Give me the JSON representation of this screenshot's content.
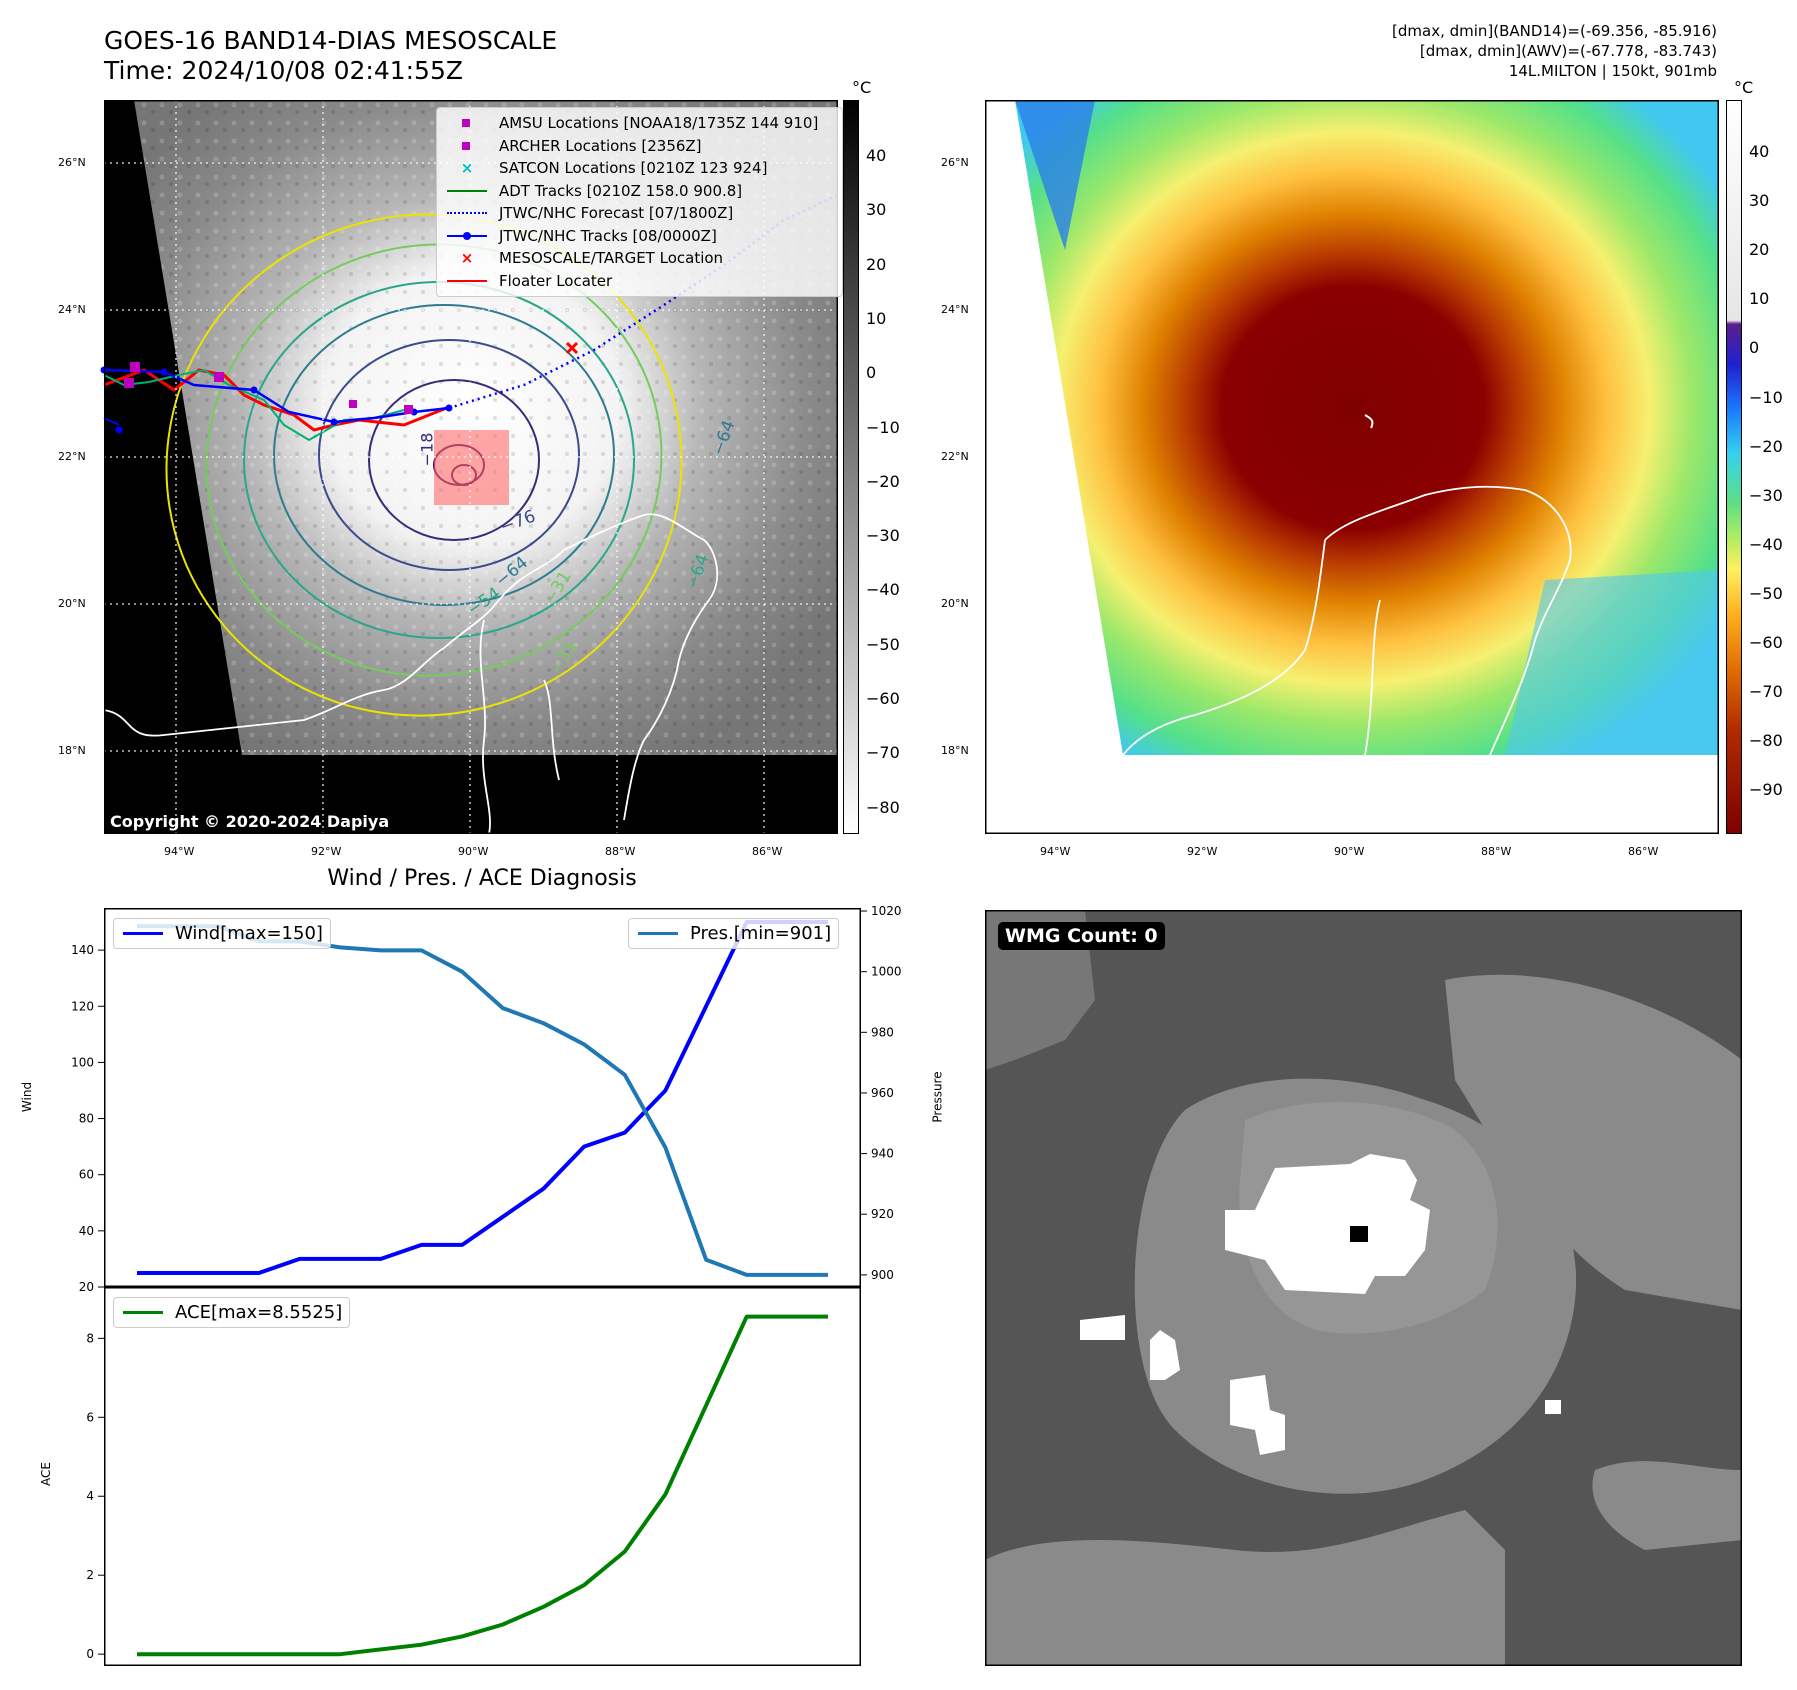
{
  "header": {
    "title_line1": "GOES-16 BAND14-DIAS MESOSCALE",
    "title_line2": "Time: 2024/10/08 02:41:55Z",
    "info_line1": "[dmax, dmin](BAND14)=(-69.356, -85.916)",
    "info_line2": "[dmax, dmin](AWV)=(-67.778, -83.743)",
    "info_line3": "14L.MILTON | 150kt, 901mb"
  },
  "map": {
    "lat_ticks": [
      "26°N",
      "24°N",
      "22°N",
      "20°N",
      "18°N"
    ],
    "lon_ticks": [
      "94°W",
      "92°W",
      "90°W",
      "88°W",
      "86°W"
    ],
    "copyright": "Copyright © 2020-2024 Dapiya",
    "contour_labels": [
      "−76",
      "−64",
      "−64",
      "−54",
      "−31",
      "−31",
      "−64",
      "−18"
    ],
    "legend": [
      {
        "label": "AMSU Locations [NOAA18/1735Z 144 910]",
        "color": "#bf00bf",
        "kind": "square"
      },
      {
        "label": "ARCHER Locations [2356Z]",
        "color": "#bf00bf",
        "kind": "square"
      },
      {
        "label": "SATCON Locations [0210Z 123 924]",
        "color": "#00bfbf",
        "kind": "x"
      },
      {
        "label": "ADT Tracks [0210Z 158.0 900.8]",
        "color": "#008000",
        "kind": "line"
      },
      {
        "label": "JTWC/NHC Forecast [07/1800Z]",
        "color": "#0000ff",
        "kind": "dotted"
      },
      {
        "label": "JTWC/NHC Tracks [08/0000Z]",
        "color": "#0000ff",
        "kind": "linedot"
      },
      {
        "label": "MESOSCALE/TARGET Location",
        "color": "#ff0000",
        "kind": "x"
      },
      {
        "label": "Floater Locater",
        "color": "#ff0000",
        "kind": "line"
      }
    ]
  },
  "colorbar_gray": {
    "unit": "°C",
    "ticks": [
      "40",
      "30",
      "20",
      "10",
      "0",
      "−10",
      "−20",
      "−30",
      "−40",
      "−50",
      "−60",
      "−70",
      "−80"
    ]
  },
  "colorbar_color": {
    "unit": "°C",
    "ticks": [
      "40",
      "30",
      "20",
      "10",
      "0",
      "−10",
      "−20",
      "−30",
      "−40",
      "−50",
      "−60",
      "−70",
      "−80",
      "−90"
    ]
  },
  "wmg": {
    "label": "WMG Count: 0"
  },
  "chart_data": [
    {
      "type": "line",
      "title": "Wind / Pres. / ACE Diagnosis",
      "ylabel": "Wind",
      "ylabel_right": "Pressure",
      "ylim": [
        20,
        155
      ],
      "ylim_right": [
        896,
        1021
      ],
      "yticks": [
        20,
        40,
        60,
        80,
        100,
        120,
        140
      ],
      "yticks_right": [
        900,
        920,
        940,
        960,
        980,
        1000,
        1020
      ],
      "x": [
        0,
        1,
        2,
        3,
        4,
        5,
        6,
        7,
        8,
        9,
        10,
        11,
        12,
        13,
        14,
        15,
        16,
        17
      ],
      "series": [
        {
          "name": "Wind[max=150]",
          "color": "#0000ff",
          "axis": "left",
          "values": [
            25,
            25,
            25,
            25,
            30,
            30,
            30,
            35,
            35,
            45,
            55,
            70,
            75,
            90,
            120,
            150,
            150,
            150
          ]
        },
        {
          "name": "Pres.[min=901]",
          "color": "#1f77b4",
          "axis": "right",
          "values": [
            1015,
            1015,
            1015,
            1010,
            1010,
            1008,
            1007,
            1007,
            1000,
            988,
            983,
            976,
            966,
            942,
            905,
            900,
            900,
            900
          ]
        }
      ]
    },
    {
      "type": "line",
      "ylabel": "ACE",
      "ylim": [
        -0.3,
        9.3
      ],
      "yticks": [
        0,
        2,
        4,
        6,
        8
      ],
      "x": [
        0,
        1,
        2,
        3,
        4,
        5,
        6,
        7,
        8,
        9,
        10,
        11,
        12,
        13,
        14,
        15,
        16,
        17
      ],
      "series": [
        {
          "name": "ACE[max=8.5525]",
          "color": "#008000",
          "values": [
            0,
            0,
            0,
            0,
            0,
            0,
            0.12,
            0.24,
            0.45,
            0.75,
            1.2,
            1.75,
            2.6,
            4.05,
            6.3,
            8.55,
            8.55,
            8.55
          ]
        }
      ]
    }
  ]
}
